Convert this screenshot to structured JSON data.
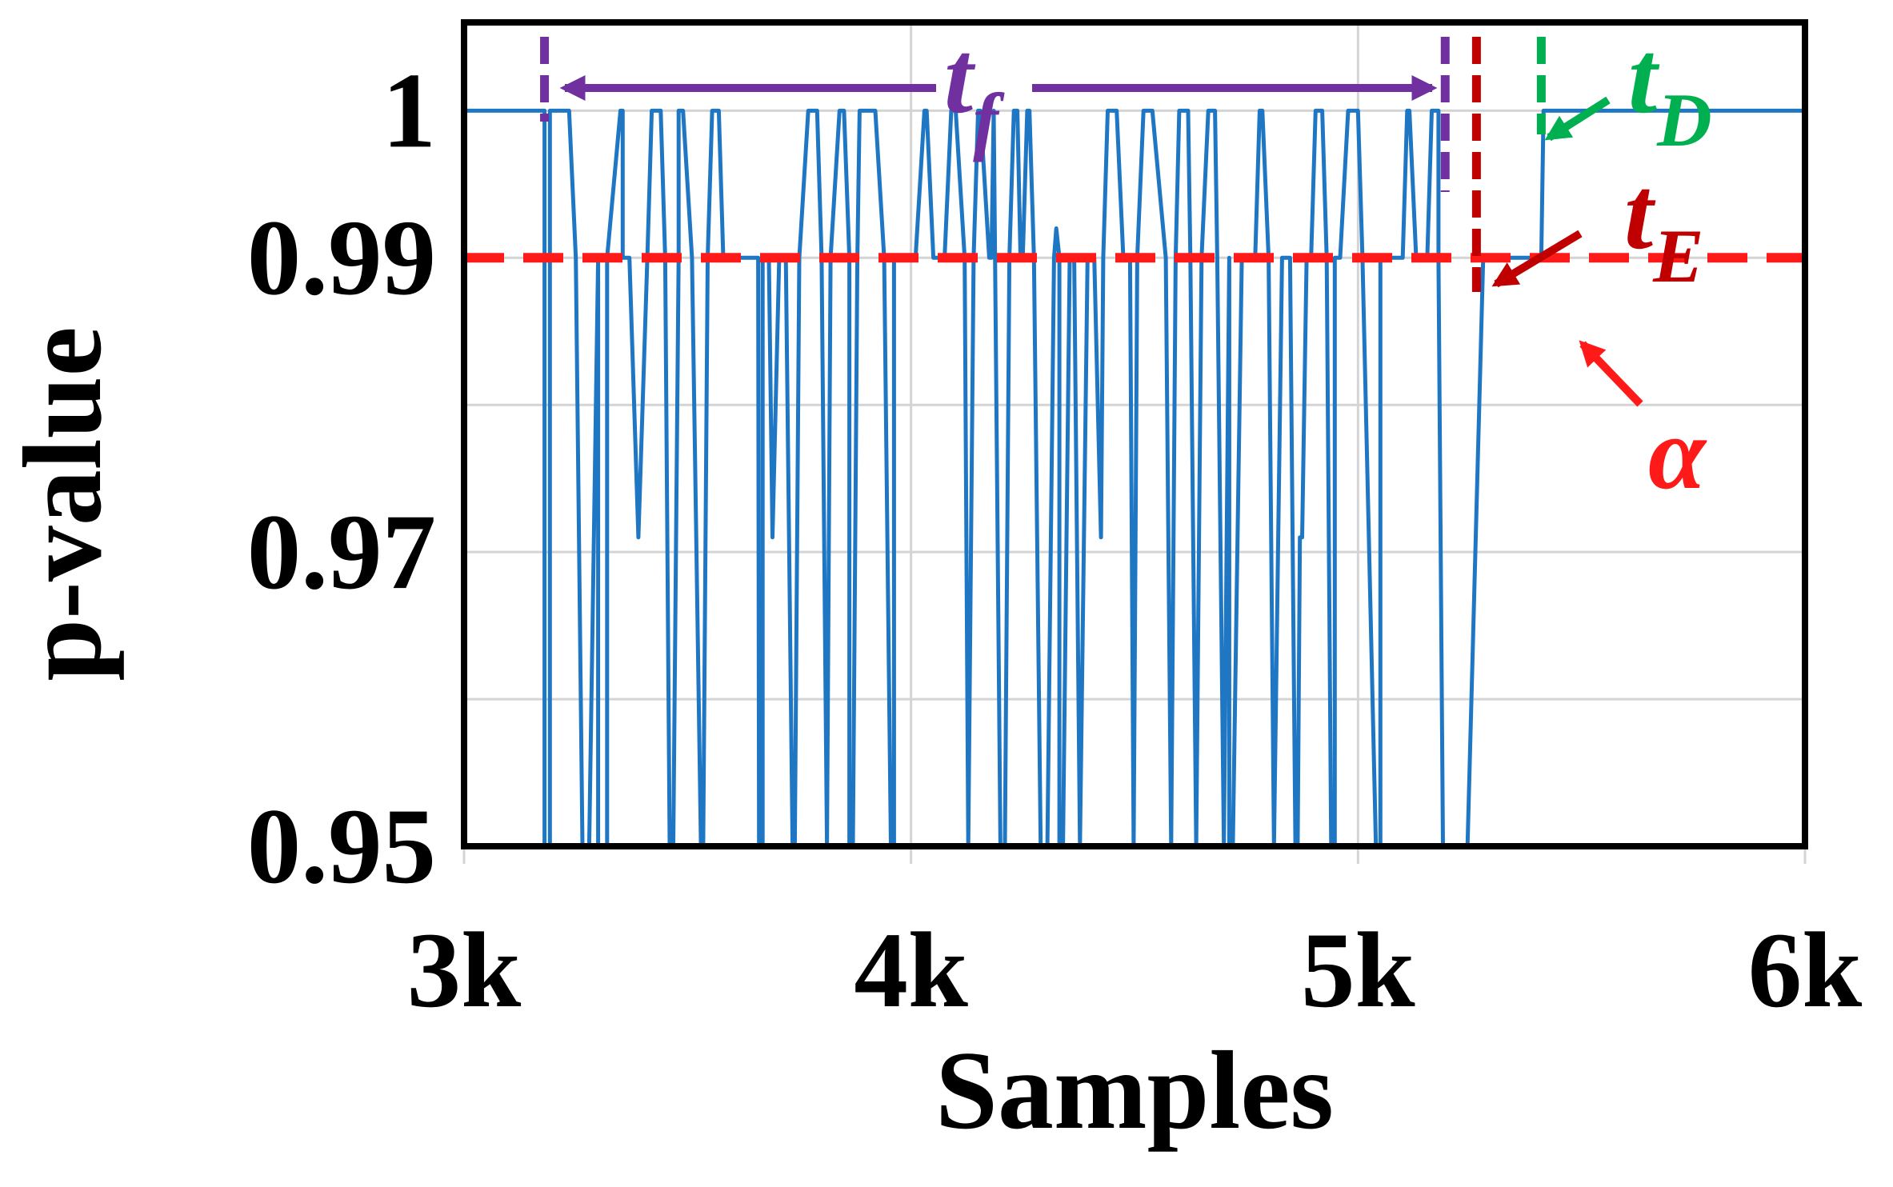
{
  "chart_data": {
    "type": "line",
    "xlabel": "Samples",
    "ylabel": "p-value",
    "xlim": [
      3000,
      6000
    ],
    "ylim": [
      0.95,
      1.006
    ],
    "x_ticks": [
      3000,
      4000,
      5000,
      6000
    ],
    "x_tick_labels": [
      "3k",
      "4k",
      "5k",
      "6k"
    ],
    "y_ticks": [
      0.95,
      0.97,
      0.99,
      1.0
    ],
    "y_tick_labels": [
      "0.95",
      "0.97",
      "0.99",
      "1"
    ],
    "grid_y": [
      0.95,
      0.96,
      0.97,
      0.98,
      0.99,
      1.0
    ],
    "grid_x": [
      3000,
      4000,
      5000,
      6000
    ],
    "threshold": {
      "name": "alpha",
      "label": "α",
      "value": 0.99,
      "color": "#ff1a1a"
    },
    "markers": [
      {
        "name": "tf-start",
        "x": 3180,
        "color": "#7030a0"
      },
      {
        "name": "tf-end",
        "x": 5195,
        "color": "#7030a0"
      },
      {
        "name": "tE",
        "x": 5265,
        "color": "#c00000"
      },
      {
        "name": "tD",
        "x": 5410,
        "color": "#00b050"
      }
    ],
    "annotations": {
      "tf": {
        "main": "t",
        "sub": "f",
        "color": "#7030a0"
      },
      "tD": {
        "main": "t",
        "sub": "D",
        "color": "#00b050"
      },
      "tE": {
        "main": "t",
        "sub": "E",
        "color": "#c00000"
      },
      "alpha": {
        "label": "α",
        "color": "#ff1a1a"
      }
    },
    "series": [
      {
        "name": "p-value",
        "color": "#1f77c4",
        "x": [
          3000,
          3170,
          3180,
          3180,
          3192,
          3192,
          3200,
          3235,
          3250,
          3265,
          3280,
          3300,
          3300,
          3320,
          3320,
          3350,
          3355,
          3355,
          3370,
          3390,
          3410,
          3420,
          3440,
          3450,
          3460,
          3468,
          3480,
          3480,
          3490,
          3510,
          3530,
          3535,
          3545,
          3555,
          3570,
          3580,
          3590,
          3595,
          3615,
          3630,
          3658,
          3660,
          3668,
          3668,
          3675,
          3682,
          3690,
          3705,
          3720,
          3735,
          3740,
          3750,
          3770,
          3790,
          3800,
          3812,
          3812,
          3820,
          3840,
          3850,
          3862,
          3862,
          3870,
          3880,
          3885,
          3900,
          3920,
          3940,
          3955,
          3962,
          3962,
          3970,
          3985,
          4000,
          4010,
          4030,
          4035,
          4050,
          4075,
          4090,
          4095,
          4100,
          4120,
          4128,
          4128,
          4140,
          4150,
          4155,
          4175,
          4180,
          4185,
          4188,
          4200,
          4210,
          4220,
          4230,
          4238,
          4245,
          4250,
          4260,
          4265,
          4275,
          4290,
          4305,
          4320,
          4325,
          4332,
          4332,
          4340,
          4355,
          4365,
          4378,
          4378,
          4395,
          4410,
          4425,
          4430,
          4440,
          4460,
          4475,
          4490,
          4498,
          4498,
          4506,
          4520,
          4540,
          4570,
          4582,
          4582,
          4592,
          4600,
          4620,
          4625,
          4638,
          4638,
          4650,
          4665,
          4680,
          4685,
          4700,
          4700,
          4712,
          4712,
          4720,
          4740,
          4750,
          4770,
          4780,
          4786,
          4800,
          4812,
          4812,
          4830,
          4845,
          4848,
          4860,
          4865,
          4870,
          4875,
          4875,
          4885,
          4895,
          4905,
          4920,
          4930,
          4940,
          4948,
          4948,
          4960,
          4978,
          5000,
          5010,
          5040,
          5050,
          5050,
          5070,
          5090,
          5100,
          5110,
          5115,
          5130,
          5155,
          5165,
          5180,
          5180,
          5190,
          5220,
          5230,
          5230,
          5245,
          5280,
          5330,
          5350,
          5360,
          5380,
          5400,
          5410,
          5415,
          5430,
          6000
        ],
        "y": [
          1.0,
          1.0,
          1.0,
          0.95,
          0.95,
          1.0,
          1.0,
          1.0,
          0.99,
          0.95,
          0.95,
          0.99,
          0.95,
          0.95,
          0.99,
          1.0,
          1.0,
          0.99,
          0.99,
          0.971,
          0.99,
          1.0,
          1.0,
          0.99,
          0.95,
          0.95,
          0.99,
          1.0,
          1.0,
          0.99,
          0.95,
          0.95,
          0.99,
          1.0,
          1.0,
          0.99,
          0.99,
          0.99,
          0.99,
          0.99,
          0.99,
          0.95,
          0.95,
          0.99,
          0.99,
          0.99,
          0.971,
          0.99,
          0.99,
          0.95,
          0.95,
          0.99,
          1.0,
          1.0,
          0.99,
          0.95,
          0.95,
          0.99,
          1.0,
          1.0,
          0.99,
          0.95,
          0.95,
          0.99,
          1.0,
          1.0,
          1.0,
          0.99,
          0.95,
          0.95,
          0.99,
          0.99,
          0.99,
          0.99,
          0.99,
          1.0,
          1.0,
          0.99,
          0.99,
          1.0,
          1.0,
          1.0,
          0.99,
          0.95,
          0.95,
          0.99,
          1.0,
          1.0,
          0.99,
          0.99,
          1.0,
          0.99,
          0.95,
          0.95,
          0.99,
          1.0,
          1.0,
          0.99,
          0.99,
          1.0,
          1.0,
          0.99,
          0.95,
          0.95,
          0.99,
          0.992,
          0.99,
          0.95,
          0.95,
          0.99,
          0.99,
          0.95,
          0.95,
          0.99,
          0.99,
          0.971,
          0.99,
          1.0,
          1.0,
          0.99,
          0.99,
          0.95,
          0.95,
          0.99,
          1.0,
          1.0,
          0.99,
          0.95,
          0.95,
          0.99,
          1.0,
          1.0,
          0.99,
          0.95,
          0.95,
          0.99,
          1.0,
          1.0,
          0.99,
          0.95,
          0.95,
          0.99,
          0.95,
          0.95,
          0.99,
          0.99,
          0.99,
          1.0,
          1.0,
          0.99,
          0.95,
          0.95,
          0.99,
          0.99,
          0.99,
          0.95,
          0.95,
          0.971,
          0.971,
          0.971,
          0.99,
          0.99,
          1.0,
          1.0,
          0.99,
          0.95,
          0.95,
          0.99,
          0.99,
          1.0,
          1.0,
          0.99,
          0.95,
          0.95,
          0.99,
          0.99,
          0.99,
          0.99,
          1.0,
          1.0,
          0.99,
          0.99,
          1.0,
          1.0,
          0.99,
          0.95,
          0.95,
          0.95,
          0.95,
          0.95,
          0.99,
          0.99,
          0.99,
          0.99,
          0.99,
          0.99,
          0.99,
          1.0,
          1.0,
          1.0
        ]
      }
    ]
  }
}
